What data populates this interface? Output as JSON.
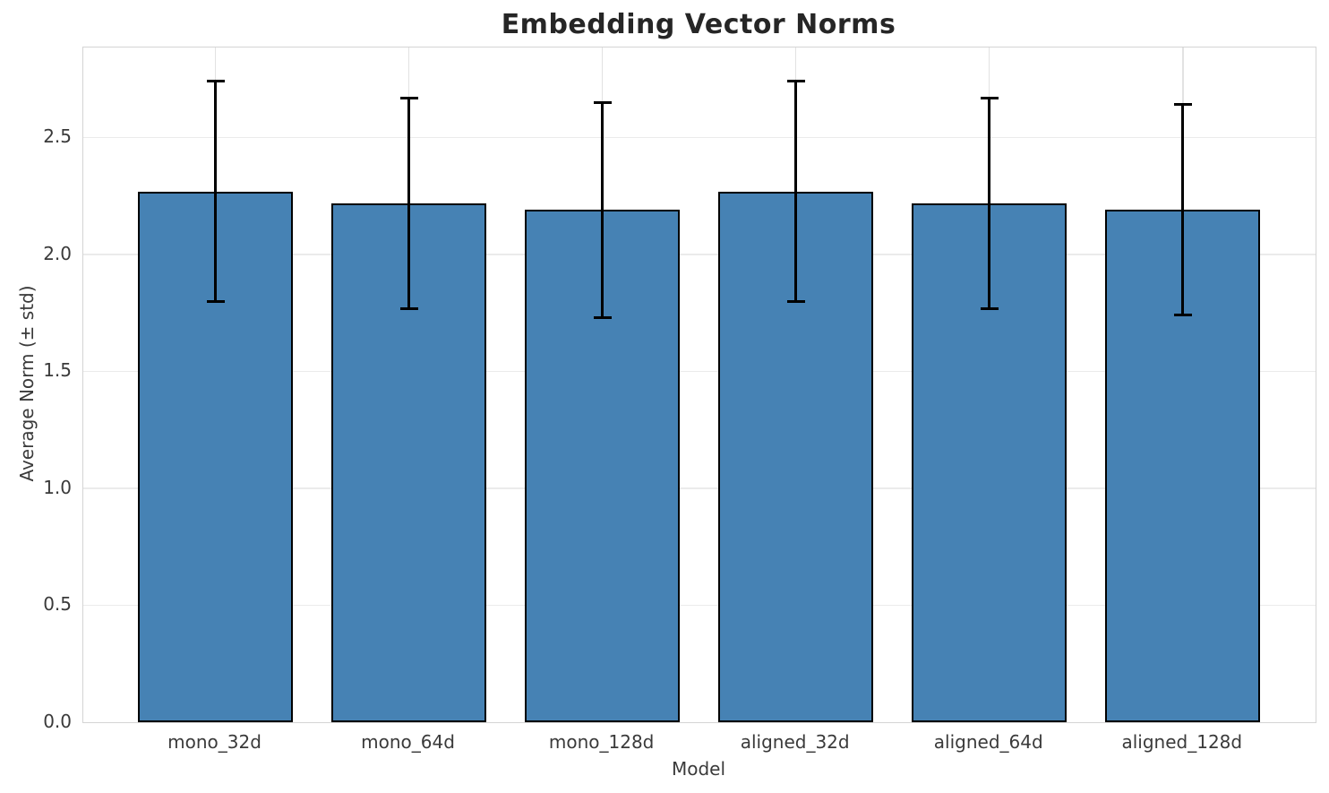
{
  "chart_data": {
    "type": "bar",
    "title": "Embedding Vector Norms",
    "xlabel": "Model",
    "ylabel": "Average Norm (± std)",
    "categories": [
      "mono_32d",
      "mono_64d",
      "mono_128d",
      "aligned_32d",
      "aligned_64d",
      "aligned_128d"
    ],
    "values": [
      2.27,
      2.22,
      2.19,
      2.27,
      2.22,
      2.19
    ],
    "errors": [
      0.47,
      0.45,
      0.46,
      0.47,
      0.45,
      0.45
    ],
    "ylim": [
      0,
      2.885
    ],
    "yticks": [
      0,
      0.5,
      1.0,
      1.5,
      2.0,
      2.5
    ],
    "ytick_labels": [
      "0.0",
      "0.5",
      "1.0",
      "1.5",
      "2.0",
      "2.5"
    ],
    "grid": true,
    "legend": "none",
    "bar_color": "#4682b4",
    "bar_edge_color": "#000000",
    "error_color": "#000000"
  }
}
